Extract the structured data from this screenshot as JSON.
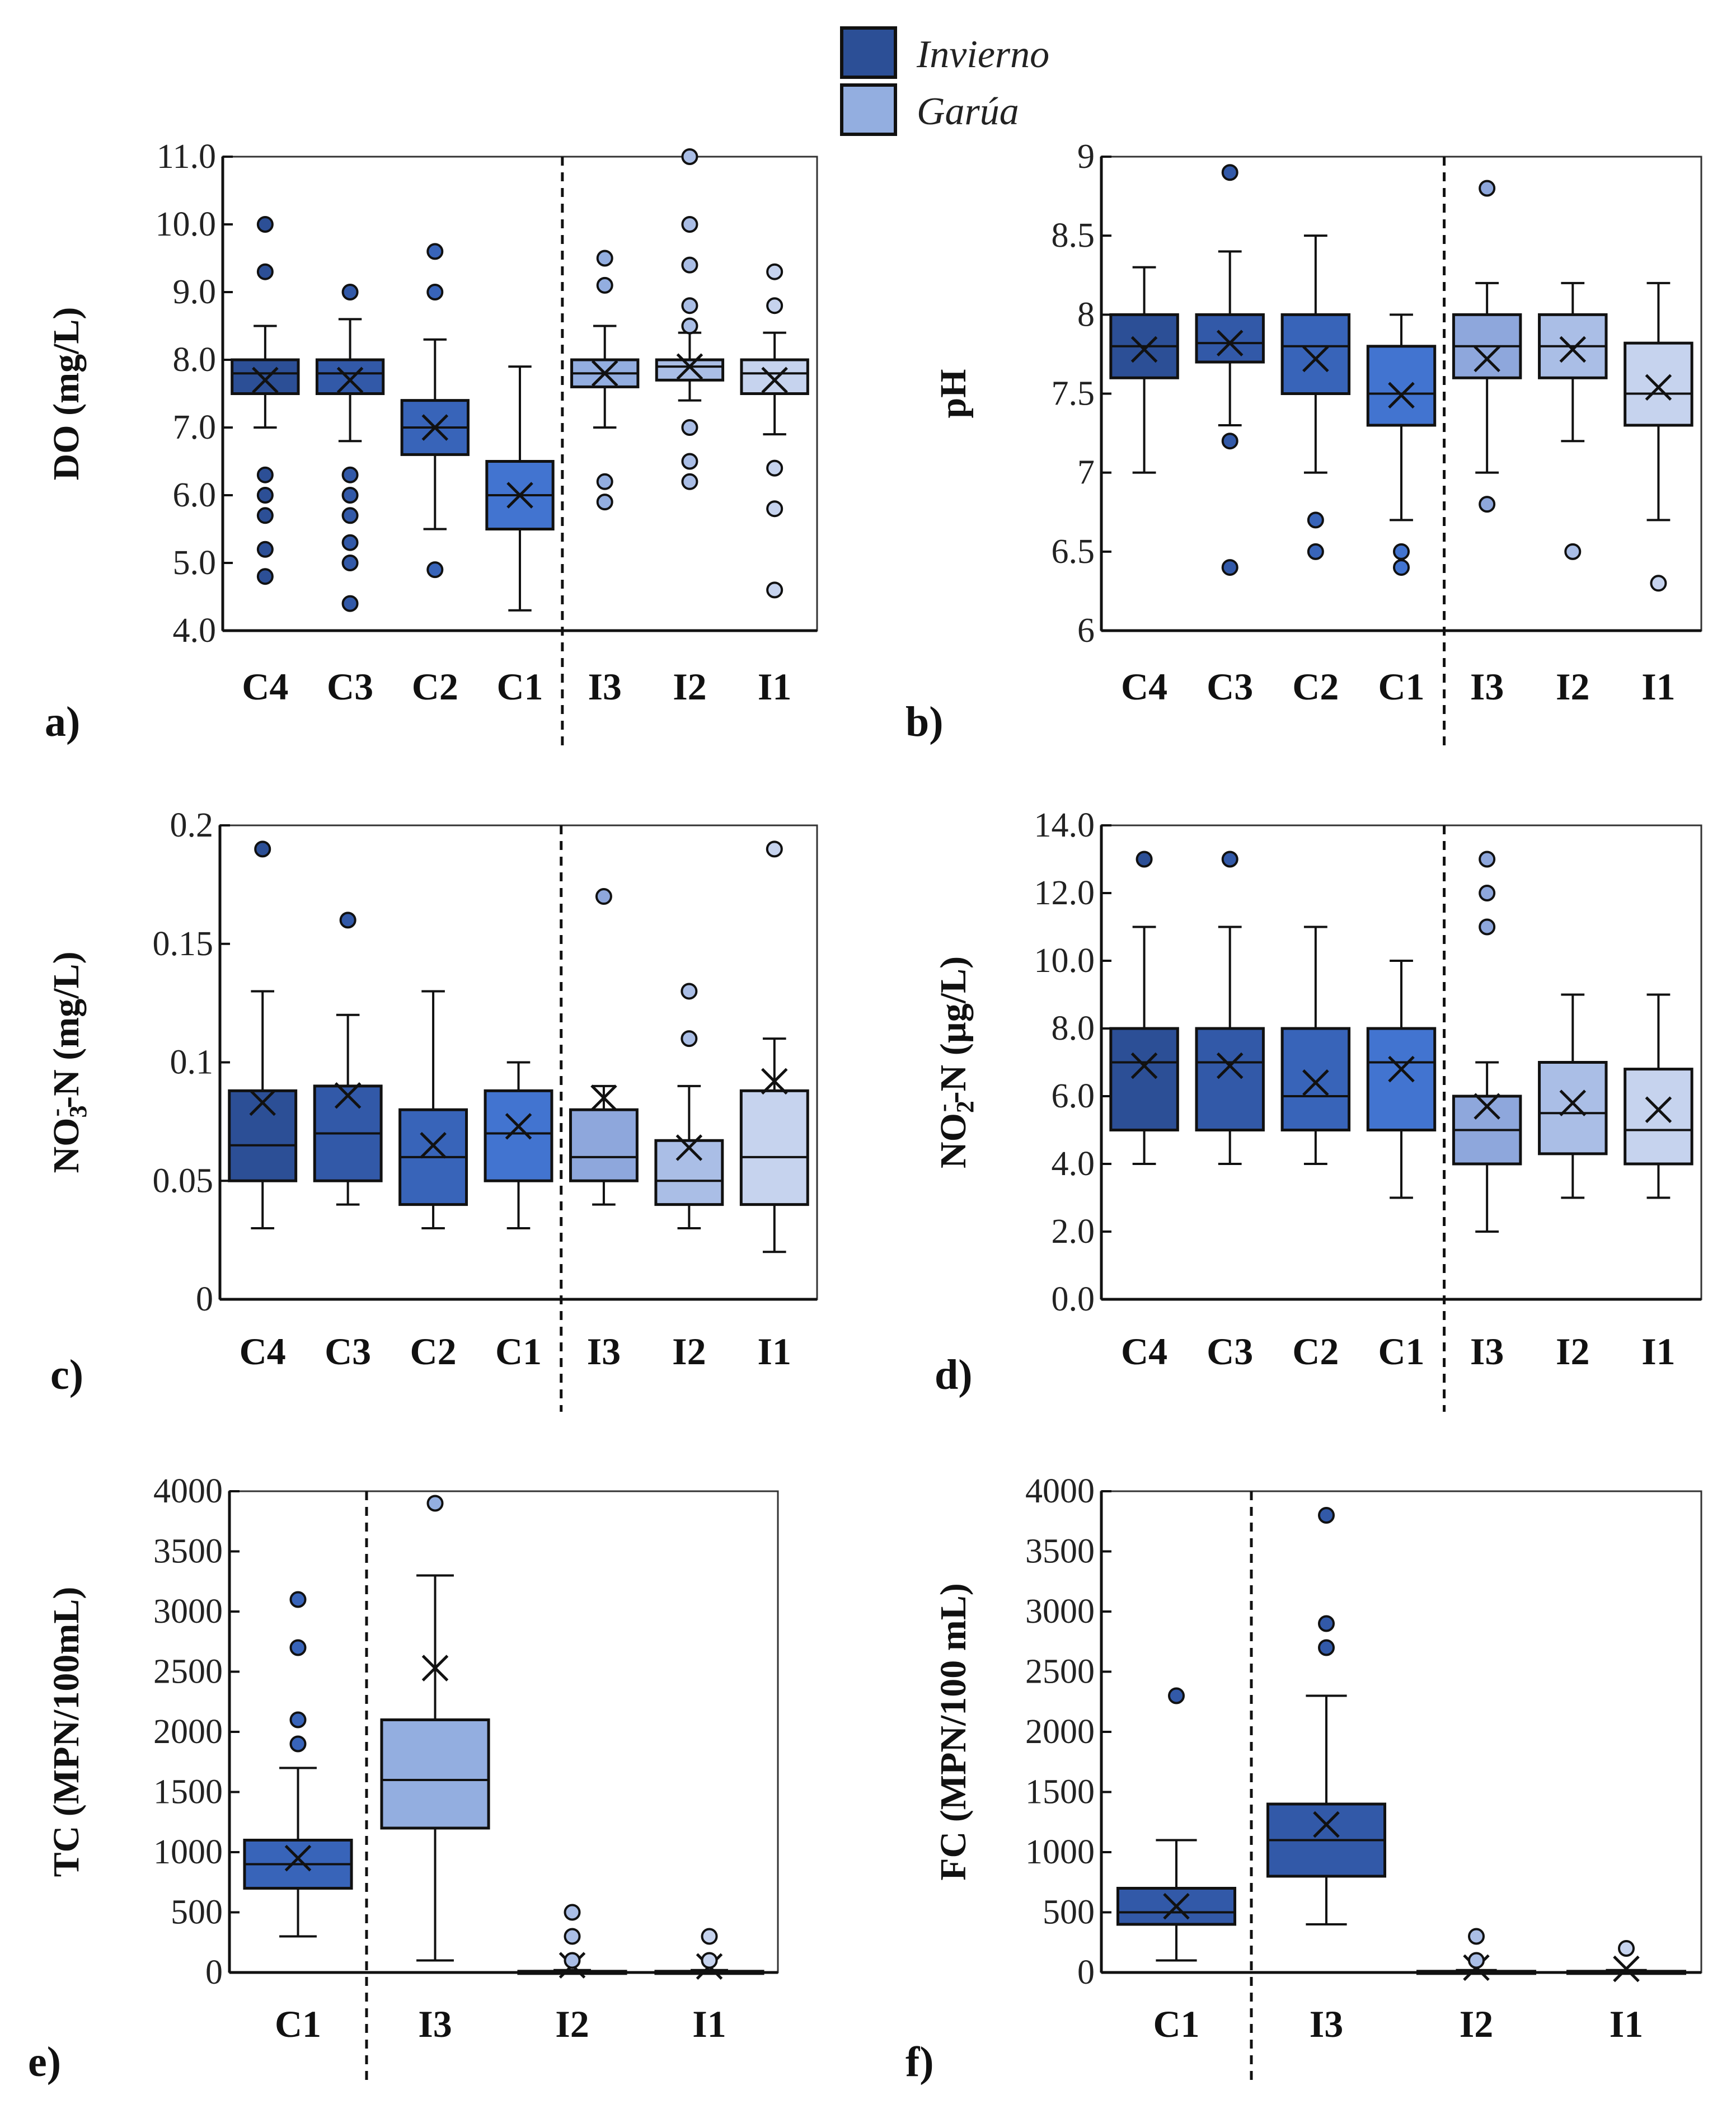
{
  "legend": {
    "items": [
      {
        "label": "Invierno",
        "color": "#2c4f96"
      },
      {
        "label": "Garúa",
        "color": "#93aee0"
      }
    ]
  },
  "chart_data": [
    {
      "type": "boxplot",
      "panel": "a)",
      "ylabel": "DO (mg/L)",
      "ylim": [
        4,
        11
      ],
      "yticks": [
        4,
        5,
        6,
        7,
        8,
        9,
        10,
        11
      ],
      "ytick_labels": [
        "4.0",
        "5.0",
        "6.0",
        "7.0",
        "8.0",
        "9.0",
        "10.0",
        "11.0"
      ],
      "divider_after": 3,
      "categories": [
        {
          "name": "C4",
          "color": "#2c4f96",
          "low": 7.0,
          "q1": 7.5,
          "median": 7.8,
          "q3": 8.0,
          "high": 8.5,
          "mean": 7.7,
          "outliers": [
            10.0,
            9.3,
            6.3,
            6.0,
            5.7,
            5.2,
            4.8
          ]
        },
        {
          "name": "C3",
          "color": "#3259a8",
          "low": 6.8,
          "q1": 7.5,
          "median": 7.8,
          "q3": 8.0,
          "high": 8.6,
          "mean": 7.7,
          "outliers": [
            9.0,
            6.3,
            6.0,
            5.7,
            5.3,
            5.0,
            4.4
          ]
        },
        {
          "name": "C2",
          "color": "#3864b9",
          "low": 5.5,
          "q1": 6.6,
          "median": 7.0,
          "q3": 7.4,
          "high": 8.3,
          "mean": 7.0,
          "outliers": [
            9.6,
            9.0,
            4.9
          ]
        },
        {
          "name": "C1",
          "color": "#4274d0",
          "low": 4.3,
          "q1": 5.5,
          "median": 6.0,
          "q3": 6.5,
          "high": 7.9,
          "mean": 6.0,
          "outliers": []
        },
        {
          "name": "I3",
          "color": "#93aee0",
          "low": 7.0,
          "q1": 7.6,
          "median": 7.8,
          "q3": 8.0,
          "high": 8.5,
          "mean": 7.8,
          "outliers": [
            9.5,
            9.1,
            6.2,
            5.9
          ]
        },
        {
          "name": "I2",
          "color": "#aabee6",
          "low": 7.4,
          "q1": 7.7,
          "median": 7.9,
          "q3": 8.0,
          "high": 8.4,
          "mean": 7.9,
          "outliers": [
            11.0,
            10.0,
            9.4,
            8.8,
            8.5,
            7.0,
            6.5,
            6.2
          ]
        },
        {
          "name": "I1",
          "color": "#c6d3ee",
          "low": 6.9,
          "q1": 7.5,
          "median": 7.8,
          "q3": 8.0,
          "high": 8.4,
          "mean": 7.7,
          "outliers": [
            9.3,
            8.8,
            6.4,
            5.8,
            4.6
          ]
        }
      ]
    },
    {
      "type": "boxplot",
      "panel": "b)",
      "ylabel": "pH",
      "ylim": [
        6,
        9
      ],
      "yticks": [
        6,
        6.5,
        7,
        7.5,
        8,
        8.5,
        9
      ],
      "ytick_labels": [
        "6",
        "6.5",
        "7",
        "7.5",
        "8",
        "8.5",
        "9"
      ],
      "divider_after": 3,
      "categories": [
        {
          "name": "C4",
          "color": "#2c4f96",
          "low": 7.0,
          "q1": 7.6,
          "median": 7.8,
          "q3": 8.0,
          "high": 8.3,
          "mean": 7.78,
          "outliers": []
        },
        {
          "name": "C3",
          "color": "#3259a8",
          "low": 7.3,
          "q1": 7.7,
          "median": 7.82,
          "q3": 8.0,
          "high": 8.4,
          "mean": 7.82,
          "outliers": [
            8.9,
            7.2,
            6.4
          ]
        },
        {
          "name": "C2",
          "color": "#3864b9",
          "low": 7.0,
          "q1": 7.5,
          "median": 7.8,
          "q3": 8.0,
          "high": 8.5,
          "mean": 7.72,
          "outliers": [
            6.7,
            6.5
          ]
        },
        {
          "name": "C1",
          "color": "#4274d0",
          "low": 6.7,
          "q1": 7.3,
          "median": 7.5,
          "q3": 7.8,
          "high": 8.0,
          "mean": 7.49,
          "outliers": [
            6.5,
            6.4
          ]
        },
        {
          "name": "I3",
          "color": "#8ea7dc",
          "low": 7.0,
          "q1": 7.6,
          "median": 7.8,
          "q3": 8.0,
          "high": 8.2,
          "mean": 7.72,
          "outliers": [
            8.8,
            6.8
          ]
        },
        {
          "name": "I2",
          "color": "#aabee6",
          "low": 7.2,
          "q1": 7.6,
          "median": 7.8,
          "q3": 8.0,
          "high": 8.2,
          "mean": 7.78,
          "outliers": [
            6.5
          ]
        },
        {
          "name": "I1",
          "color": "#c6d3ee",
          "low": 6.7,
          "q1": 7.3,
          "median": 7.5,
          "q3": 7.82,
          "high": 8.2,
          "mean": 7.54,
          "outliers": [
            6.3
          ]
        }
      ]
    },
    {
      "type": "boxplot",
      "panel": "c)",
      "ylabel": "NO3--N (mg/L)",
      "ylabel_parts": {
        "base": "NO",
        "sub": "3",
        "sup": "-",
        "rest": "-N (mg/L)"
      },
      "ylim": [
        0,
        0.2
      ],
      "yticks": [
        0,
        0.05,
        0.1,
        0.15,
        0.2
      ],
      "ytick_labels": [
        "0",
        "0.05",
        "0.1",
        "0.15",
        "0.2"
      ],
      "divider_after": 3,
      "categories": [
        {
          "name": "C4",
          "color": "#2c4f96",
          "low": 0.03,
          "q1": 0.05,
          "median": 0.065,
          "q3": 0.088,
          "high": 0.13,
          "mean": 0.083,
          "outliers": [
            0.19
          ]
        },
        {
          "name": "C3",
          "color": "#3259a8",
          "low": 0.04,
          "q1": 0.05,
          "median": 0.07,
          "q3": 0.09,
          "high": 0.12,
          "mean": 0.086,
          "outliers": [
            0.16
          ]
        },
        {
          "name": "C2",
          "color": "#3864b9",
          "low": 0.03,
          "q1": 0.04,
          "median": 0.06,
          "q3": 0.08,
          "high": 0.13,
          "mean": 0.065,
          "outliers": []
        },
        {
          "name": "C1",
          "color": "#4274d0",
          "low": 0.03,
          "q1": 0.05,
          "median": 0.07,
          "q3": 0.088,
          "high": 0.1,
          "mean": 0.073,
          "outliers": []
        },
        {
          "name": "I3",
          "color": "#8ea7dc",
          "low": 0.04,
          "q1": 0.05,
          "median": 0.06,
          "q3": 0.08,
          "high": 0.09,
          "mean": 0.085,
          "outliers": [
            0.17
          ]
        },
        {
          "name": "I2",
          "color": "#aabee6",
          "low": 0.03,
          "q1": 0.04,
          "median": 0.05,
          "q3": 0.067,
          "high": 0.09,
          "mean": 0.064,
          "outliers": [
            0.13,
            0.11
          ]
        },
        {
          "name": "I1",
          "color": "#c6d3ee",
          "low": 0.02,
          "q1": 0.04,
          "median": 0.06,
          "q3": 0.088,
          "high": 0.11,
          "mean": 0.092,
          "outliers": [
            0.19
          ]
        }
      ]
    },
    {
      "type": "boxplot",
      "panel": "d)",
      "ylabel": "NO2--N (µg/L)",
      "ylabel_parts": {
        "base": "NO",
        "sub": "2",
        "sup": "-",
        "rest": "-N (µg/L)"
      },
      "ylim": [
        0,
        14
      ],
      "yticks": [
        0,
        2,
        4,
        6,
        8,
        10,
        12,
        14
      ],
      "ytick_labels": [
        "0.0",
        "2.0",
        "4.0",
        "6.0",
        "8.0",
        "10.0",
        "12.0",
        "14.0"
      ],
      "divider_after": 3,
      "categories": [
        {
          "name": "C4",
          "color": "#2c4f96",
          "low": 4.0,
          "q1": 5.0,
          "median": 7.0,
          "q3": 8.0,
          "high": 11.0,
          "mean": 6.9,
          "outliers": [
            13.0
          ]
        },
        {
          "name": "C3",
          "color": "#3259a8",
          "low": 4.0,
          "q1": 5.0,
          "median": 7.0,
          "q3": 8.0,
          "high": 11.0,
          "mean": 6.9,
          "outliers": [
            13.0
          ]
        },
        {
          "name": "C2",
          "color": "#3864b9",
          "low": 4.0,
          "q1": 5.0,
          "median": 6.0,
          "q3": 8.0,
          "high": 11.0,
          "mean": 6.4,
          "outliers": []
        },
        {
          "name": "C1",
          "color": "#4274d0",
          "low": 3.0,
          "q1": 5.0,
          "median": 7.0,
          "q3": 8.0,
          "high": 10.0,
          "mean": 6.8,
          "outliers": []
        },
        {
          "name": "I3",
          "color": "#8ea7dc",
          "low": 2.0,
          "q1": 4.0,
          "median": 5.0,
          "q3": 6.0,
          "high": 7.0,
          "mean": 5.7,
          "outliers": [
            13.0,
            12.0,
            11.0
          ]
        },
        {
          "name": "I2",
          "color": "#aabee6",
          "low": 3.0,
          "q1": 4.3,
          "median": 5.5,
          "q3": 7.0,
          "high": 9.0,
          "mean": 5.8,
          "outliers": []
        },
        {
          "name": "I1",
          "color": "#c6d3ee",
          "low": 3.0,
          "q1": 4.0,
          "median": 5.0,
          "q3": 6.8,
          "high": 9.0,
          "mean": 5.6,
          "outliers": []
        }
      ]
    },
    {
      "type": "boxplot",
      "panel": "e)",
      "ylabel": "TC (MPN/100mL)",
      "ylim": [
        0,
        4000
      ],
      "yticks": [
        0,
        500,
        1000,
        1500,
        2000,
        2500,
        3000,
        3500,
        4000
      ],
      "ytick_labels": [
        "0",
        "500",
        "1000",
        "1500",
        "2000",
        "2500",
        "3000",
        "3500",
        "4000"
      ],
      "divider_after": 0,
      "categories": [
        {
          "name": "C1",
          "color": "#3864b9",
          "low": 300,
          "q1": 700,
          "median": 900,
          "q3": 1100,
          "high": 1700,
          "mean": 950,
          "outliers": [
            3100,
            2700,
            2100,
            1900
          ]
        },
        {
          "name": "I3",
          "color": "#93aee0",
          "low": 100,
          "q1": 1200,
          "median": 1600,
          "q3": 2100,
          "high": 3300,
          "mean": 2530,
          "outliers": [
            3900
          ]
        },
        {
          "name": "I2",
          "color": "#aabee6",
          "low": 0,
          "q1": 0,
          "median": 0,
          "q3": 10,
          "high": 20,
          "mean": 60,
          "outliers": [
            500,
            300,
            100
          ]
        },
        {
          "name": "I1",
          "color": "#c6d3ee",
          "low": 0,
          "q1": 0,
          "median": 0,
          "q3": 10,
          "high": 20,
          "mean": 50,
          "outliers": [
            300,
            100
          ]
        }
      ]
    },
    {
      "type": "boxplot",
      "panel": "f)",
      "ylabel": "FC (MPN/100 mL)",
      "ylim": [
        0,
        4000
      ],
      "yticks": [
        0,
        500,
        1000,
        1500,
        2000,
        2500,
        3000,
        3500,
        4000
      ],
      "ytick_labels": [
        "0",
        "500",
        "1000",
        "1500",
        "2000",
        "2500",
        "3000",
        "3500",
        "4000"
      ],
      "divider_after": 0,
      "categories": [
        {
          "name": "C1",
          "color": "#3259a8",
          "low": 100,
          "q1": 400,
          "median": 500,
          "q3": 700,
          "high": 1100,
          "mean": 550,
          "outliers": [
            2300
          ]
        },
        {
          "name": "I3",
          "color": "#3259a8",
          "low": 400,
          "q1": 800,
          "median": 1100,
          "q3": 1400,
          "high": 2300,
          "mean": 1230,
          "outliers": [
            3800,
            2900,
            2700
          ]
        },
        {
          "name": "I2",
          "color": "#aabee6",
          "low": 0,
          "q1": 0,
          "median": 0,
          "q3": 10,
          "high": 20,
          "mean": 40,
          "outliers": [
            300,
            100
          ]
        },
        {
          "name": "I1",
          "color": "#c6d3ee",
          "low": 0,
          "q1": 0,
          "median": 0,
          "q3": 10,
          "high": 20,
          "mean": 30,
          "outliers": [
            200
          ]
        }
      ]
    }
  ]
}
